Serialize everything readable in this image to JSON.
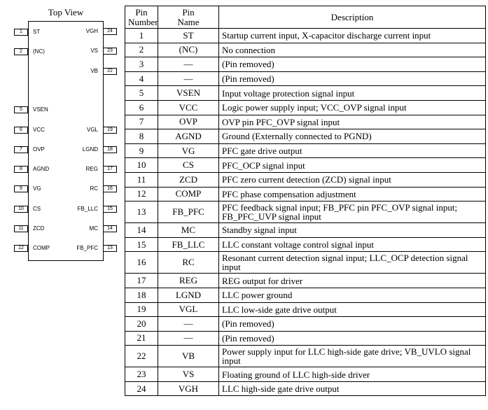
{
  "diagram": {
    "title": "Top View",
    "left_pins": [
      {
        "num": "1",
        "name": "ST"
      },
      {
        "num": "2",
        "name": "(NC)"
      },
      {
        "num": "5",
        "name": "VSEN"
      },
      {
        "num": "6",
        "name": "VCC"
      },
      {
        "num": "7",
        "name": "OVP"
      },
      {
        "num": "8",
        "name": "AGND"
      },
      {
        "num": "9",
        "name": "VG"
      },
      {
        "num": "10",
        "name": "CS"
      },
      {
        "num": "11",
        "name": "ZCD"
      },
      {
        "num": "12",
        "name": "COMP"
      }
    ],
    "right_pins": [
      {
        "num": "24",
        "name": "VGH"
      },
      {
        "num": "23",
        "name": "VS"
      },
      {
        "num": "22",
        "name": "VB"
      },
      {
        "num": "19",
        "name": "VGL"
      },
      {
        "num": "18",
        "name": "LGND"
      },
      {
        "num": "17",
        "name": "REG"
      },
      {
        "num": "16",
        "name": "RC"
      },
      {
        "num": "15",
        "name": "FB_LLC"
      },
      {
        "num": "14",
        "name": "MC"
      },
      {
        "num": "13",
        "name": "FB_PFC"
      }
    ]
  },
  "table": {
    "headers": {
      "pin_number_1": "Pin",
      "pin_number_2": "Number",
      "pin_name_1": "Pin",
      "pin_name_2": "Name",
      "description": "Description"
    },
    "rows": [
      {
        "num": "1",
        "name": "ST",
        "desc": "Startup current input, X-capacitor discharge current input"
      },
      {
        "num": "2",
        "name": "(NC)",
        "desc": "No connection"
      },
      {
        "num": "3",
        "name": "—",
        "desc": "(Pin removed)"
      },
      {
        "num": "4",
        "name": "—",
        "desc": "(Pin removed)"
      },
      {
        "num": "5",
        "name": "VSEN",
        "desc": "Input voltage protection signal input"
      },
      {
        "num": "6",
        "name": "VCC",
        "desc": "Logic power supply input; VCC_OVP signal input"
      },
      {
        "num": "7",
        "name": "OVP",
        "desc": "OVP pin PFC_OVP signal input"
      },
      {
        "num": "8",
        "name": "AGND",
        "desc": "Ground (Externally connected to PGND)"
      },
      {
        "num": "9",
        "name": "VG",
        "desc": "PFC gate drive output"
      },
      {
        "num": "10",
        "name": "CS",
        "desc": "PFC_OCP signal input"
      },
      {
        "num": "11",
        "name": "ZCD",
        "desc": "PFC zero current detection (ZCD) signal input"
      },
      {
        "num": "12",
        "name": "COMP",
        "desc": "PFC phase compensation adjustment"
      },
      {
        "num": "13",
        "name": "FB_PFC",
        "desc": "PFC feedback signal input; FB_PFC pin PFC_OVP signal input; FB_PFC_UVP signal input",
        "tall": true
      },
      {
        "num": "14",
        "name": "MC",
        "desc": "Standby signal input"
      },
      {
        "num": "15",
        "name": "FB_LLC",
        "desc": "LLC constant voltage control signal input"
      },
      {
        "num": "16",
        "name": "RC",
        "desc": "Resonant current detection signal input; LLC_OCP detection signal input",
        "tall": true
      },
      {
        "num": "17",
        "name": "REG",
        "desc": "REG output for driver"
      },
      {
        "num": "18",
        "name": "LGND",
        "desc": "LLC power ground"
      },
      {
        "num": "19",
        "name": "VGL",
        "desc": "LLC low-side gate drive output"
      },
      {
        "num": "20",
        "name": "—",
        "desc": "(Pin removed)"
      },
      {
        "num": "21",
        "name": "—",
        "desc": "(Pin removed)"
      },
      {
        "num": "22",
        "name": "VB",
        "desc": "Power supply input for LLC high-side gate drive; VB_UVLO signal input",
        "tall": true
      },
      {
        "num": "23",
        "name": "VS",
        "desc": "Floating ground of LLC high-side driver"
      },
      {
        "num": "24",
        "name": "VGH",
        "desc": "LLC high-side gate drive output"
      }
    ]
  }
}
